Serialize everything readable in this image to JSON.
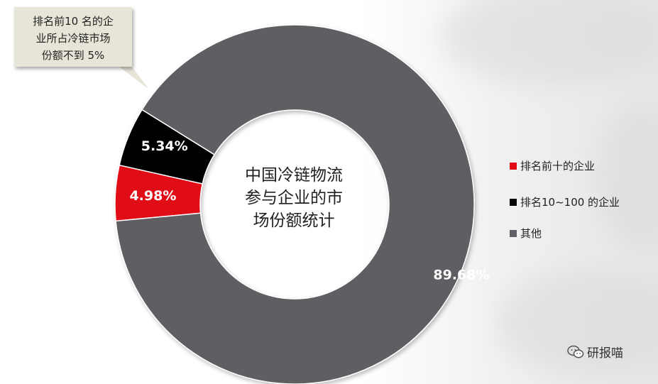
{
  "chart_data": {
    "type": "donut",
    "center_label_lines": [
      "中国冷链物流",
      "参与企业的市",
      "场份额统计"
    ],
    "slices": [
      {
        "name": "排名前十的企业",
        "value": 4.98,
        "label": "4.98%",
        "color": "#e10b17"
      },
      {
        "name": "排名10~100 的企业",
        "value": 5.34,
        "label": "5.34%",
        "color": "#050505"
      },
      {
        "name": "其他",
        "value": 89.68,
        "label": "89.68%",
        "color": "#5e5f64"
      }
    ],
    "legend_position": "right",
    "annotation_lines": [
      "排名前10 名的企",
      "业所占冷链市场",
      "份额不到 5%"
    ]
  },
  "watermark": {
    "text": "研报喵",
    "icon": "wechat-icon"
  }
}
